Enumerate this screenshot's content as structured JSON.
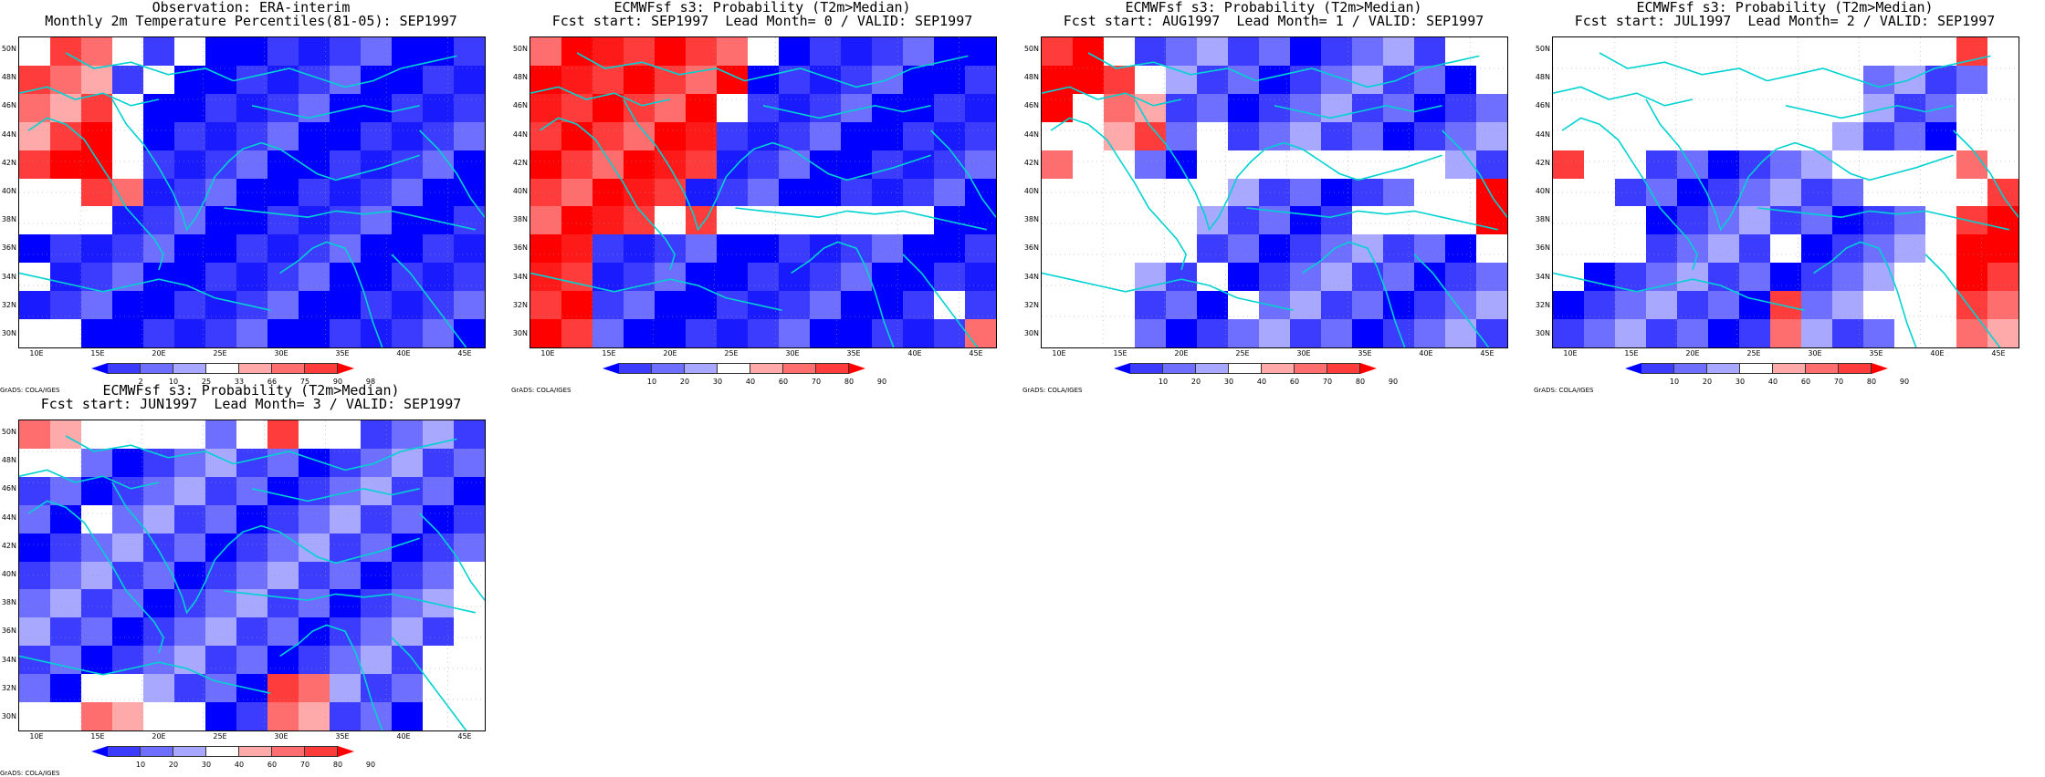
{
  "credit": "GrADS: COLA/IGES",
  "lat_labels": [
    "50N",
    "48N",
    "46N",
    "44N",
    "42N",
    "40N",
    "38N",
    "36N",
    "34N",
    "32N",
    "30N"
  ],
  "lon_labels": [
    "10E",
    "15E",
    "20E",
    "25E",
    "30E",
    "35E",
    "40E",
    "45E"
  ],
  "colors": {
    "coast": "#00d2d2",
    "dark_blue": "#0000ff",
    "mid_blue": "#3c3cff",
    "med_blue": "#6e6eff",
    "light_blue": "#a8a8ff",
    "white": "#ffffff",
    "light_red": "#ffaaaa",
    "med_red": "#ff6e6e",
    "red": "#ff3c3c",
    "dark_red": "#ff0000"
  },
  "panels": [
    {
      "title1": "Observation: ERA-interim",
      "title2": "Monthly 2m Temperature Percentiles(81-05): SEP1997",
      "colorbar_labels": [
        "2",
        "10",
        "25",
        "33",
        "66",
        "75",
        "90",
        "98"
      ],
      "grid": [
        "WRRWBWBBBBBBBBB",
        "RRRBWBBBBBBBBBB",
        "RRRWBBBBBBBBBBB",
        "RRRWBBBBBBBBBBB",
        "RRRWBBBBBBBBBBB",
        "WWRRBBBBBBBBBBB",
        "WWWBBBBBBBBBBBB",
        "BBBBBBBBBBBBBBB",
        "WBBBBBBBBBBBBBB",
        "BBBBBBBBBBBBBBB",
        "WWBBBBBBBBBBBBB"
      ]
    },
    {
      "title1": "ECMWFsf s3: Probability (T2m>Median)",
      "title2": "Fcst start: SEP1997  Lead Month= 0 / VALID: SEP1997",
      "colorbar_labels": [
        "10",
        "20",
        "30",
        "40",
        "60",
        "70",
        "80",
        "90"
      ],
      "grid": [
        "RRRRRRRWBBBBBBB",
        "RRRRRRRBBBBBBBB",
        "RRRRRRWBBBBBBBB",
        "RRRRRRBBBBBBBBB",
        "RRRRRRBBBBBBBBB",
        "RRRRRBBBBBBBBBB",
        "RRRRWRWWWWWWWBB",
        "RRBBBBBBBBBBBBB",
        "RRBBBBBBBBBBBBB",
        "RRBBBBBBBBBBBWB",
        "RRBBBBBBBBBBBBR"
      ]
    },
    {
      "title1": "ECMWFsf s3: Probability (T2m>Median)",
      "title2": "Fcst start: AUG1997  Lead Month= 1 / VALID: SEP1997",
      "colorbar_labels": [
        "10",
        "20",
        "30",
        "40",
        "60",
        "70",
        "80",
        "90"
      ],
      "grid": [
        "RRWBBBBBBBBBBWW",
        "RRRWBBBBBBBBBBW",
        "RWRRBBBBBBBBBBB",
        "WWRRBWBBBBBBBBB",
        "RWWBBWWWWWWWWBB",
        "WWWWWWBBBBBBWWR",
        "WWWWWBBBBBWWWWR",
        "WWWWWBBBBBBBBBW",
        "WWWBBWBBBBBBBBB",
        "WWWBBBWBBBBBBBB",
        "WWWBBBBBBBBBBBB"
      ]
    },
    {
      "title1": "ECMWFsf s3: Probability (T2m>Median)",
      "title2": "Fcst start: JUL1997  Lead Month= 2 / VALID: SEP1997",
      "colorbar_labels": [
        "10",
        "20",
        "30",
        "40",
        "60",
        "70",
        "80",
        "90"
      ],
      "grid": [
        "WWWWWWWWWWWWWRW",
        "WWWWWWWWWWBBBBW",
        "WWWWWWWWWWBBBWW",
        "WWWWWWWWWBBBBWW",
        "RWWBBBBBBWWWWRW",
        "WWBBBBBBBBWWWWR",
        "WWWBBBBBBBBBWRR",
        "WWWBBBBWBBBBWRR",
        "WBBBBBBBBBBWWRR",
        "BBBBBBBRBBWWWRR",
        "BBBBBBBRBBBWWRR"
      ]
    },
    {
      "title1": "ECMWFsf s3: Probability (T2m>Median)",
      "title2": "Fcst start: JUN1997  Lead Month= 3 / VALID: SEP1997",
      "colorbar_labels": [
        "10",
        "20",
        "30",
        "40",
        "60",
        "70",
        "80",
        "90"
      ],
      "grid": [
        "RRWWWWBWRWWBBBB",
        "WWBBBBBBBBBBBBB",
        "BBBBBBBBBBBBBBB",
        "BBWBBBBBBBBBBBB",
        "BBBBBBBBBBBBBBB",
        "BBBBBBBBBBBBBBW",
        "BBBBBBBBBBBBBBW",
        "BBBBBBBBBBBBBBW",
        "BBBBBBBBBBBBBWW",
        "BBWWBBBBRRBBBWW",
        "WWRRWWBBRRBBBWW"
      ]
    }
  ]
}
